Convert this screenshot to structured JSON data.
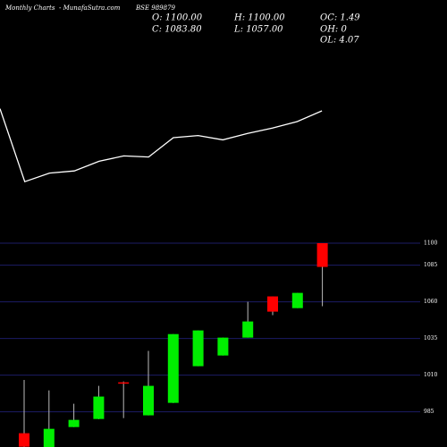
{
  "header": {
    "title": "Monthly Charts",
    "site": "- MunafaSutra.com",
    "symbol": "BSE 989879",
    "open": "O: 1100.00",
    "high": "H: 1100.00",
    "oc": "OC: 1.49",
    "close": "C: 1083.80",
    "low": "L: 1057.00",
    "oh": "OH: 0",
    "ol": "OL: 4.07"
  },
  "chart_data": [
    {
      "type": "line",
      "color": "#ffffff",
      "ylim": [
        0,
        100
      ],
      "values": [
        82,
        14,
        22,
        24,
        33,
        38,
        37,
        55,
        57,
        53,
        59,
        64,
        70,
        80
      ]
    },
    {
      "type": "candlestick",
      "up_color": "#00ee00",
      "down_color": "#ff0000",
      "wick_color": "#bbbbbb",
      "grid_color": "#1c1c66",
      "ylim": [
        961,
        1105
      ],
      "yticks": [
        1100,
        1085,
        1060,
        1035,
        1010,
        985
      ],
      "open": [
        970.4,
        961,
        974.6,
        980.1,
        1005.1,
        982.6,
        991.1,
        1016.1,
        1023.4,
        1035.6,
        1063.7,
        1055.7,
        1100
      ],
      "high": [
        1006.7,
        999.6,
        990.5,
        1002.7,
        1005.7,
        1026.5,
        1038,
        1040.5,
        1035.6,
        1060,
        1063.7,
        1066.1,
        1100
      ],
      "low": [
        961,
        961,
        974.6,
        980,
        980.7,
        982.6,
        991,
        1016.1,
        1023.4,
        1035.6,
        1050.9,
        1055.7,
        1057
      ],
      "close": [
        961.2,
        973.4,
        979.5,
        995.4,
        1004.5,
        1002.7,
        1038,
        1040.5,
        1035.6,
        1046.6,
        1053.3,
        1066.1,
        1083.8
      ]
    }
  ]
}
